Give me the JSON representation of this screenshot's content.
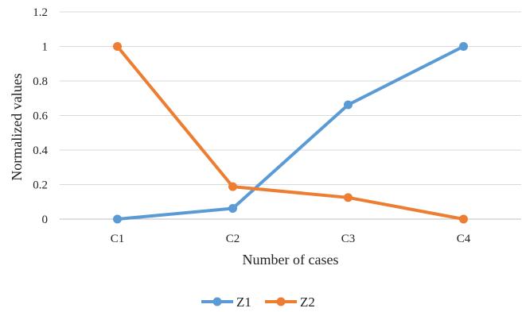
{
  "chart_data": {
    "type": "line",
    "title": "",
    "xlabel": "Number of cases",
    "ylabel": "Normalized values",
    "categories": [
      "C1",
      "C2",
      "C3",
      "C4"
    ],
    "ylim": [
      0,
      1.2
    ],
    "yticks": [
      "0",
      "0.2",
      "0.4",
      "0.6",
      "0.8",
      "1",
      "1.2"
    ],
    "grid": true,
    "legend_position": "bottom",
    "series": [
      {
        "name": "Z1",
        "color": "#5b9bd5",
        "values": [
          0,
          0.062,
          0.662,
          1
        ]
      },
      {
        "name": "Z2",
        "color": "#ed7d31",
        "values": [
          1,
          0.188,
          0.125,
          0
        ]
      }
    ]
  }
}
